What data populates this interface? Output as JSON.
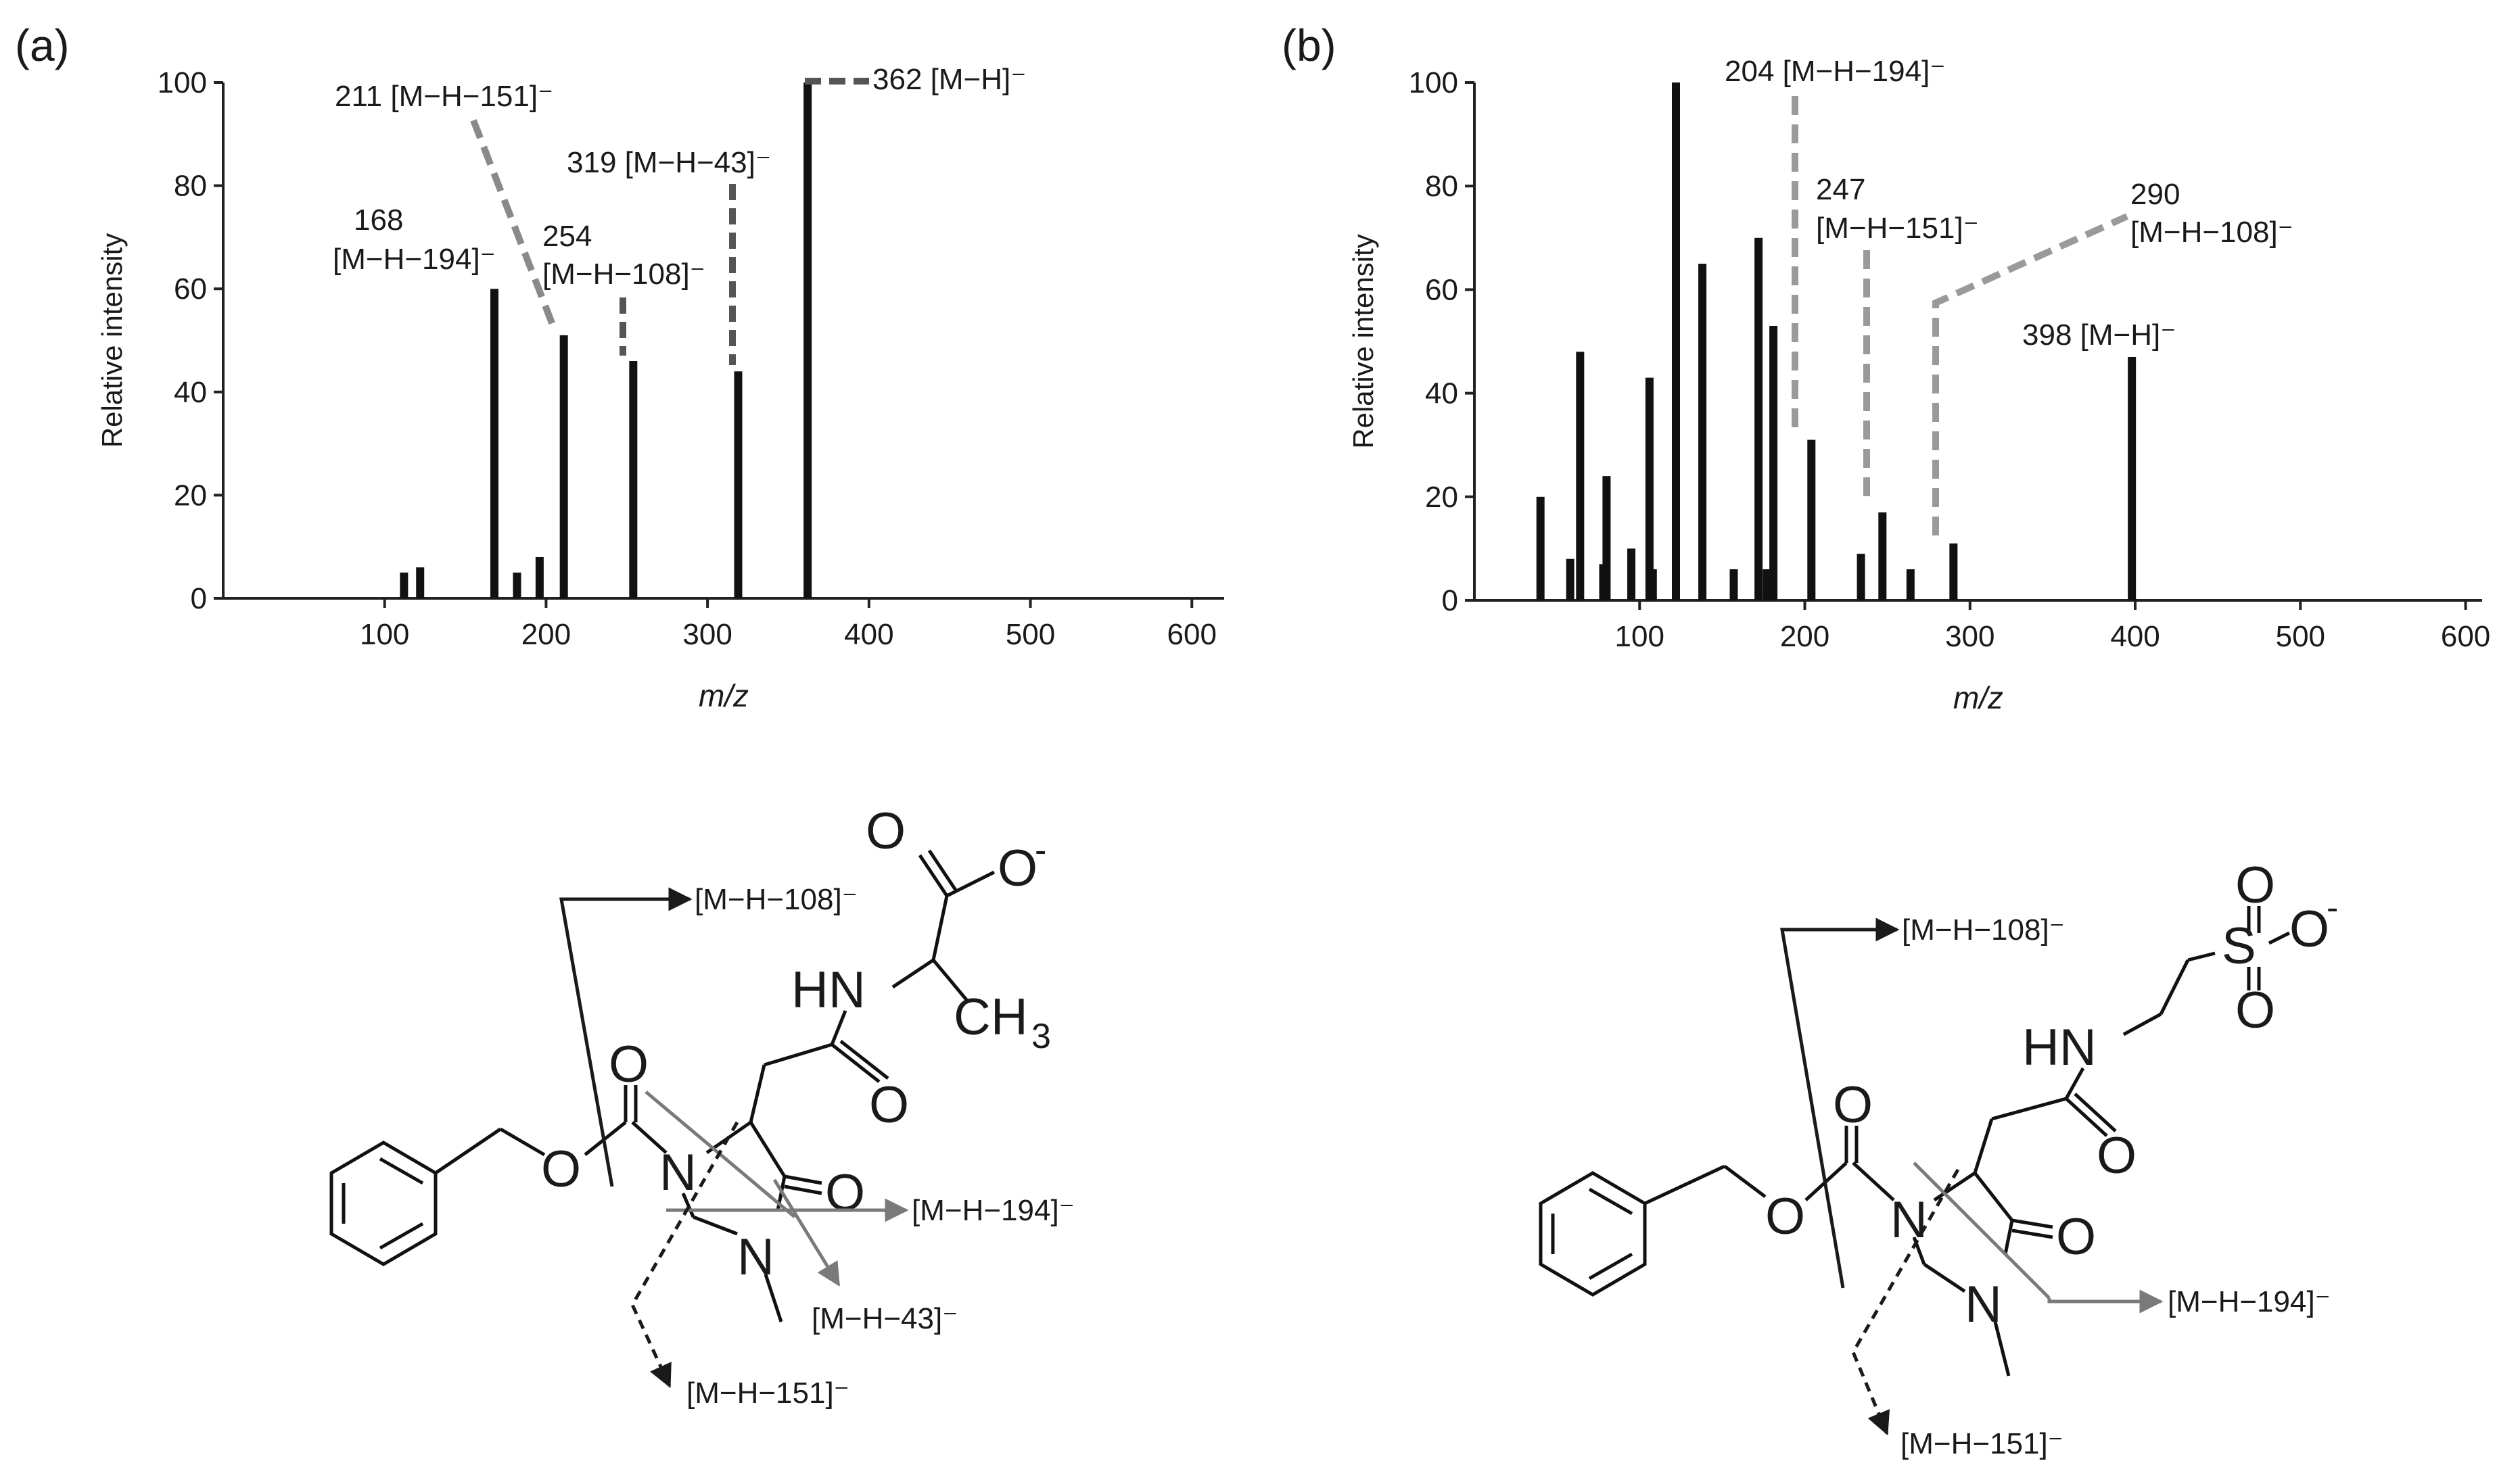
{
  "panels": [
    {
      "label": "(a)",
      "chart_data": {
        "type": "bar",
        "xlabel": "m/z",
        "ylabel": "Relative intensity",
        "xlim": [
          0,
          620
        ],
        "ylim": [
          0,
          100
        ],
        "xticks": [
          "100",
          "200",
          "300",
          "400",
          "500",
          "600"
        ],
        "yticks": [
          "0",
          "20",
          "40",
          "60",
          "80",
          "100"
        ],
        "x": [
          112,
          122,
          168,
          182,
          196,
          211,
          254,
          319,
          362
        ],
        "values": [
          5,
          6,
          60,
          5,
          8,
          51,
          46,
          44,
          100
        ],
        "annotations": [
          {
            "lines": [
              "211 [M−H−151]⁻"
            ],
            "x": 211
          },
          {
            "lines": [
              "168",
              "[M−H−194]⁻"
            ],
            "x": 168
          },
          {
            "lines": [
              "254",
              "[M−H−108]⁻"
            ],
            "x": 254
          },
          {
            "lines": [
              "319 [M−H−43]⁻"
            ],
            "x": 319
          },
          {
            "lines": [
              "362 [M−H]⁻"
            ],
            "x": 362
          }
        ]
      },
      "structure": {
        "atoms": {
          "O_top": "O",
          "O_minus": "O",
          "charge": "-",
          "HN": "HN",
          "CH": "CH",
          "sub3": "3",
          "O_amide": "O",
          "O_carb": "O",
          "O_ester": "O",
          "N_ring": "N",
          "O_ring": "O",
          "N_me": "N"
        },
        "fragments": {
          "f108": "[M−H−108]⁻",
          "f194": "[M−H−194]⁻",
          "f43": "[M−H−43]⁻",
          "f151": "[M−H−151]⁻"
        }
      }
    },
    {
      "label": "(b)",
      "chart_data": {
        "type": "bar",
        "xlabel": "m/z",
        "ylabel": "Relative intensity",
        "xlim": [
          0,
          610
        ],
        "ylim": [
          0,
          100
        ],
        "xticks": [
          "100",
          "200",
          "300",
          "400",
          "500",
          "600"
        ],
        "yticks": [
          "0",
          "20",
          "40",
          "60",
          "80",
          "100"
        ],
        "x": [
          40,
          58,
          64,
          78,
          80,
          95,
          106,
          108,
          122,
          138,
          157,
          172,
          177,
          181,
          204,
          234,
          247,
          264,
          290,
          398
        ],
        "values": [
          20,
          8,
          48,
          7,
          24,
          10,
          43,
          6,
          100,
          65,
          6,
          70,
          6,
          53,
          31,
          9,
          17,
          6,
          11,
          47
        ],
        "annotations": [
          {
            "lines": [
              "204 [M−H−194]⁻"
            ],
            "x": 204
          },
          {
            "lines": [
              "247",
              "[M−H−151]⁻"
            ],
            "x": 247
          },
          {
            "lines": [
              "290",
              "[M−H−108]⁻"
            ],
            "x": 290
          },
          {
            "lines": [
              "398 [M−H]⁻"
            ],
            "x": 398
          }
        ]
      },
      "structure": {
        "atoms": {
          "O_top": "O",
          "O_minus": "O",
          "charge": "-",
          "S": "S",
          "O_s2": "O",
          "HN": "HN",
          "O_amide": "O",
          "O_carb": "O",
          "O_ester": "O",
          "N_ring": "N",
          "O_ring": "O",
          "N_me": "N"
        },
        "fragments": {
          "f108": "[M−H−108]⁻",
          "f194": "[M−H−194]⁻",
          "f151": "[M−H−151]⁻"
        }
      }
    }
  ]
}
